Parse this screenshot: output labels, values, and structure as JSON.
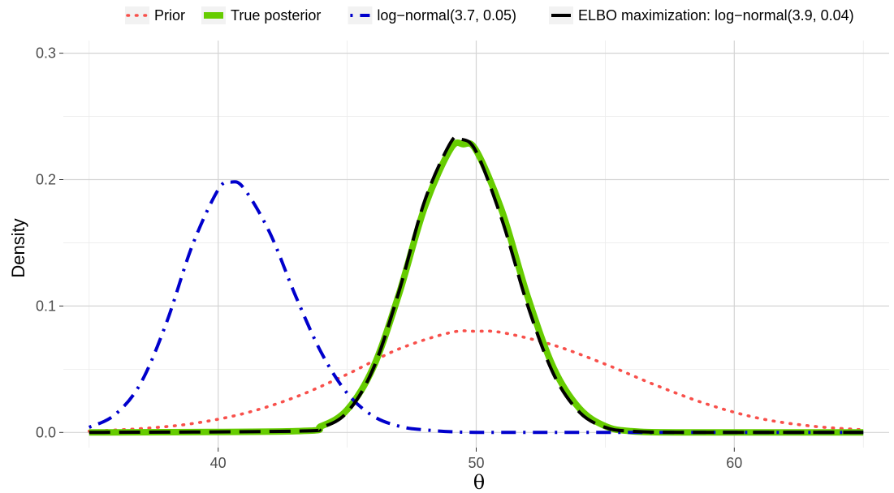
{
  "chart_data": {
    "type": "line",
    "xlabel": "θ",
    "ylabel": "Density",
    "xlim": [
      34,
      66
    ],
    "ylim": [
      -0.012,
      0.31
    ],
    "x_ticks": [
      40,
      50,
      60
    ],
    "x_tick_labels": [
      "40",
      "50",
      "60"
    ],
    "y_ticks": [
      0.0,
      0.1,
      0.2,
      0.3
    ],
    "y_tick_labels": [
      "0.0",
      "0.1",
      "0.2",
      "0.3"
    ],
    "grid": true,
    "legend_position": "top",
    "series": [
      {
        "name": "Prior",
        "color": "#F8504B",
        "line_style": "dotted",
        "x": [
          35,
          37,
          39,
          41,
          43,
          45,
          47,
          49,
          50,
          51,
          53,
          55,
          57,
          59,
          61,
          63,
          65
        ],
        "y": [
          0.001,
          0.003,
          0.007,
          0.015,
          0.028,
          0.046,
          0.066,
          0.079,
          0.08,
          0.079,
          0.069,
          0.054,
          0.037,
          0.022,
          0.011,
          0.005,
          0.002
        ]
      },
      {
        "name": "True posterior",
        "color": "#66CC00",
        "line_style": "solid",
        "x": [
          35,
          43,
          44,
          45,
          46,
          47,
          48,
          49,
          49.5,
          50,
          51,
          52,
          53,
          54,
          55,
          56,
          58,
          65
        ],
        "y": [
          0.0,
          0.001,
          0.005,
          0.018,
          0.051,
          0.109,
          0.178,
          0.224,
          0.228,
          0.223,
          0.175,
          0.107,
          0.051,
          0.019,
          0.005,
          0.001,
          0.0,
          0.0
        ]
      },
      {
        "name": "log−normal(3.7, 0.05)",
        "color": "#0000CC",
        "line_style": "dotdash",
        "x": [
          35,
          36,
          37,
          38,
          39,
          40,
          40.5,
          41,
          42,
          43,
          44,
          45,
          46,
          47,
          48,
          50,
          55,
          65
        ],
        "y": [
          0.004,
          0.014,
          0.039,
          0.087,
          0.148,
          0.192,
          0.198,
          0.193,
          0.158,
          0.108,
          0.063,
          0.031,
          0.013,
          0.005,
          0.002,
          0.0,
          0.0,
          0.0
        ]
      },
      {
        "name": "ELBO maximization: log−normal(3.9, 0.04)",
        "color": "#000000",
        "line_style": "longdash",
        "x": [
          35,
          43,
          44,
          45,
          46,
          47,
          48,
          49,
          49.4,
          50,
          51,
          52,
          53,
          54,
          55,
          56,
          58,
          65
        ],
        "y": [
          0.0,
          0.001,
          0.004,
          0.016,
          0.05,
          0.111,
          0.183,
          0.229,
          0.232,
          0.222,
          0.168,
          0.1,
          0.046,
          0.016,
          0.004,
          0.001,
          0.0,
          0.0
        ]
      }
    ]
  }
}
